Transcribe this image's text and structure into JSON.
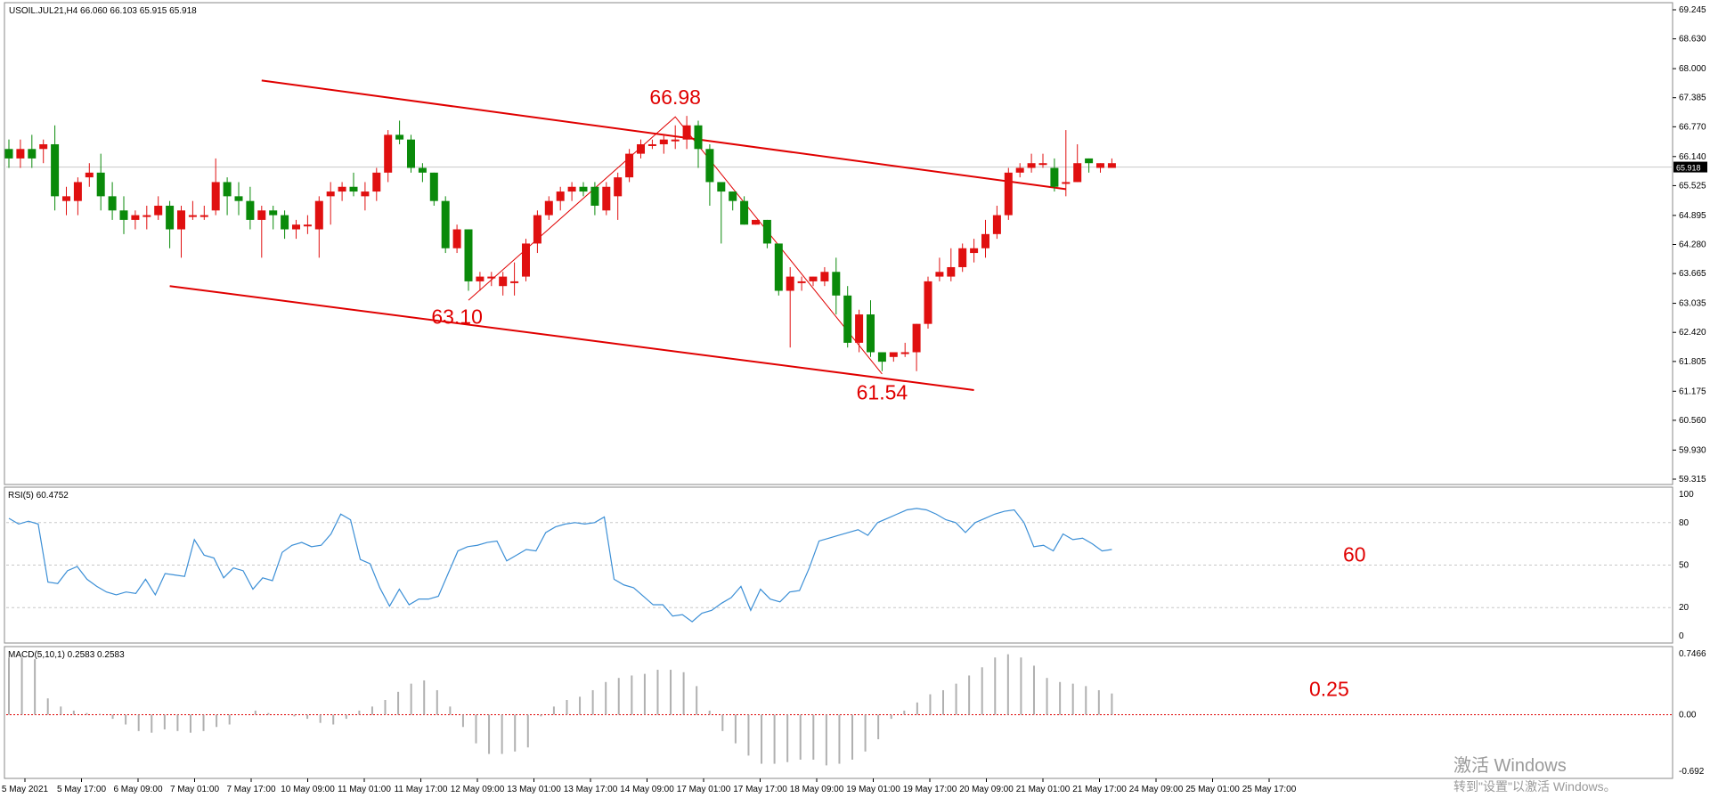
{
  "header": {
    "symbol_info": "USOIL.JUL21,H4  66.060 66.103 65.915 65.918",
    "rsi_label": "RSI(5) 60.4752",
    "macd_label": "MACD(5,10,1) 0.2583 0.2583"
  },
  "watermark": {
    "line1": "激活 Windows",
    "line2": "转到\"设置\"以激活 Windows。"
  },
  "colors": {
    "bull": "#e01010",
    "bear": "#0a8a0a",
    "channel": "#e00000",
    "rsi_line": "#3c8fd6",
    "grid": "#c8c8c8",
    "annotation": "#e00000"
  },
  "chart_data": [
    {
      "type": "candlestick",
      "title": "USOIL.JUL21,H4",
      "current_price": "65.918",
      "ylim": [
        59.315,
        69.245
      ],
      "y_ticks": [
        "69.245",
        "68.630",
        "68.000",
        "67.385",
        "66.770",
        "66.140",
        "65.525",
        "64.895",
        "64.280",
        "63.665",
        "63.035",
        "62.420",
        "61.805",
        "61.175",
        "60.560",
        "59.930",
        "59.315"
      ],
      "x_ticks": [
        "5 May 2021",
        "5 May 17:00",
        "6 May 09:00",
        "7 May 01:00",
        "7 May 17:00",
        "10 May 09:00",
        "11 May 01:00",
        "11 May 17:00",
        "12 May 09:00",
        "13 May 01:00",
        "13 May 17:00",
        "14 May 09:00",
        "17 May 01:00",
        "17 May 17:00",
        "18 May 09:00",
        "19 May 01:00",
        "19 May 17:00",
        "20 May 09:00",
        "21 May 01:00",
        "21 May 17:00",
        "24 May 09:00",
        "25 May 01:00",
        "25 May 17:00"
      ],
      "candles": [
        [
          66.3,
          66.1,
          66.5,
          65.9
        ],
        [
          66.1,
          66.3,
          66.5,
          65.9
        ],
        [
          66.3,
          66.1,
          66.6,
          65.9
        ],
        [
          66.3,
          66.4,
          66.5,
          66.0
        ],
        [
          66.4,
          65.3,
          66.8,
          65.0
        ],
        [
          65.2,
          65.3,
          65.5,
          64.9
        ],
        [
          65.2,
          65.6,
          65.7,
          64.9
        ],
        [
          65.7,
          65.8,
          66.0,
          65.5
        ],
        [
          65.8,
          65.3,
          66.2,
          65.0
        ],
        [
          65.3,
          65.0,
          65.6,
          64.8
        ],
        [
          65.0,
          64.8,
          65.3,
          64.5
        ],
        [
          64.8,
          64.9,
          65.0,
          64.6
        ],
        [
          64.9,
          64.9,
          65.1,
          64.6
        ],
        [
          64.9,
          65.1,
          65.3,
          64.8
        ],
        [
          65.1,
          64.6,
          65.2,
          64.2
        ],
        [
          64.6,
          65.0,
          65.1,
          64.0
        ],
        [
          64.9,
          64.9,
          65.2,
          64.8
        ],
        [
          64.9,
          64.9,
          65.1,
          64.8
        ],
        [
          65.0,
          65.6,
          66.1,
          64.9
        ],
        [
          65.6,
          65.3,
          65.7,
          64.9
        ],
        [
          65.3,
          65.2,
          65.6,
          64.9
        ],
        [
          65.2,
          64.8,
          65.5,
          64.6
        ],
        [
          64.8,
          65.0,
          65.1,
          64.0
        ],
        [
          65.0,
          64.9,
          65.1,
          64.6
        ],
        [
          64.9,
          64.6,
          65.0,
          64.4
        ],
        [
          64.6,
          64.7,
          64.8,
          64.4
        ],
        [
          64.7,
          64.7,
          64.9,
          64.5
        ],
        [
          64.6,
          65.2,
          65.3,
          64.0
        ],
        [
          65.3,
          65.4,
          65.6,
          64.7
        ],
        [
          65.4,
          65.5,
          65.6,
          65.2
        ],
        [
          65.5,
          65.4,
          65.8,
          65.3
        ],
        [
          65.3,
          65.4,
          65.6,
          65.0
        ],
        [
          65.4,
          65.8,
          65.9,
          65.2
        ],
        [
          65.8,
          66.6,
          66.7,
          65.6
        ],
        [
          66.6,
          66.5,
          66.9,
          66.4
        ],
        [
          66.5,
          65.9,
          66.6,
          65.8
        ],
        [
          65.9,
          65.8,
          66.0,
          65.6
        ],
        [
          65.8,
          65.2,
          65.8,
          65.1
        ],
        [
          65.2,
          64.2,
          65.3,
          64.1
        ],
        [
          64.2,
          64.6,
          64.7,
          64.1
        ],
        [
          64.6,
          63.5,
          64.6,
          63.3
        ],
        [
          63.5,
          63.6,
          63.7,
          63.3
        ],
        [
          63.6,
          63.6,
          63.7,
          63.4
        ],
        [
          63.4,
          63.6,
          63.7,
          63.2
        ],
        [
          63.5,
          63.5,
          63.9,
          63.2
        ],
        [
          63.6,
          64.3,
          64.4,
          63.5
        ],
        [
          64.3,
          64.9,
          65.0,
          64.1
        ],
        [
          64.9,
          65.2,
          65.3,
          64.8
        ],
        [
          65.2,
          65.4,
          65.5,
          65.0
        ],
        [
          65.4,
          65.5,
          65.6,
          65.2
        ],
        [
          65.5,
          65.4,
          65.6,
          65.3
        ],
        [
          65.5,
          65.1,
          65.6,
          64.9
        ],
        [
          65.0,
          65.5,
          65.6,
          64.9
        ],
        [
          65.3,
          65.7,
          65.8,
          64.8
        ],
        [
          65.7,
          66.2,
          66.3,
          65.6
        ],
        [
          66.2,
          66.4,
          66.5,
          66.1
        ],
        [
          66.4,
          66.4,
          66.5,
          66.3
        ],
        [
          66.4,
          66.5,
          66.6,
          66.2
        ],
        [
          66.5,
          66.5,
          66.8,
          66.3
        ],
        [
          66.5,
          66.8,
          67.0,
          66.3
        ],
        [
          66.8,
          66.3,
          66.9,
          65.9
        ],
        [
          66.3,
          65.6,
          66.4,
          65.1
        ],
        [
          65.6,
          65.4,
          65.5,
          64.3
        ],
        [
          65.4,
          65.2,
          65.4,
          65.0
        ],
        [
          65.2,
          64.7,
          65.3,
          64.7
        ],
        [
          64.7,
          64.8,
          64.8,
          64.7
        ],
        [
          64.8,
          64.3,
          64.8,
          64.2
        ],
        [
          64.3,
          63.3,
          64.3,
          63.2
        ],
        [
          63.3,
          63.6,
          63.8,
          62.1
        ],
        [
          63.5,
          63.5,
          63.6,
          63.3
        ],
        [
          63.5,
          63.6,
          63.6,
          63.4
        ],
        [
          63.5,
          63.7,
          63.8,
          63.4
        ],
        [
          63.7,
          63.2,
          64.0,
          62.8
        ],
        [
          63.2,
          62.2,
          63.4,
          62.1
        ],
        [
          62.2,
          62.8,
          62.9,
          62.0
        ],
        [
          62.8,
          62.0,
          63.1,
          61.9
        ],
        [
          62.0,
          61.8,
          62.0,
          61.6
        ],
        [
          61.9,
          62.0,
          62.0,
          61.8
        ],
        [
          62.0,
          62.0,
          62.2,
          61.9
        ],
        [
          62.0,
          62.6,
          62.6,
          61.6
        ],
        [
          62.6,
          63.5,
          63.6,
          62.5
        ],
        [
          63.6,
          63.7,
          64.0,
          63.5
        ],
        [
          63.6,
          63.8,
          64.2,
          63.5
        ],
        [
          63.8,
          64.2,
          64.3,
          63.7
        ],
        [
          64.1,
          64.2,
          64.4,
          63.9
        ],
        [
          64.2,
          64.5,
          64.8,
          64.0
        ],
        [
          64.5,
          64.9,
          65.1,
          64.4
        ],
        [
          64.9,
          65.8,
          65.9,
          64.8
        ],
        [
          65.8,
          65.9,
          66.0,
          65.7
        ],
        [
          65.9,
          66.0,
          66.2,
          65.8
        ],
        [
          66.0,
          66.0,
          66.2,
          65.9
        ],
        [
          65.9,
          65.5,
          66.1,
          65.4
        ],
        [
          65.6,
          65.6,
          66.7,
          65.3
        ],
        [
          65.6,
          66.0,
          66.4,
          65.6
        ],
        [
          66.1,
          66.0,
          66.1,
          65.8
        ],
        [
          65.9,
          66.0,
          66.0,
          65.8
        ],
        [
          65.9,
          66.0,
          66.1,
          65.9
        ]
      ],
      "channel_lines": [
        {
          "from": [
            11,
            67.75
          ],
          "to": [
            46,
            65.45
          ]
        },
        {
          "from": [
            7,
            63.4
          ],
          "to": [
            42,
            61.2
          ]
        }
      ],
      "zigzag_points": [
        [
          20,
          63.1
        ],
        [
          29,
          66.98
        ],
        [
          38,
          61.54
        ]
      ],
      "annotations": [
        {
          "text": "66.98",
          "x": 29,
          "y": 67.25
        },
        {
          "text": "63.10",
          "x": 19.5,
          "y": 62.6
        },
        {
          "text": "61.54",
          "x": 38,
          "y": 61.0
        }
      ]
    },
    {
      "type": "line",
      "title": "RSI(5) 60.4752",
      "ylim": [
        0,
        100
      ],
      "levels": [
        20,
        50,
        80
      ],
      "y_ticks": [
        "100",
        "80",
        "50",
        "20",
        "0"
      ],
      "values": [
        83,
        79,
        81,
        79,
        38,
        37,
        46,
        49,
        40,
        35,
        31,
        29,
        31,
        30,
        40,
        29,
        44,
        43,
        42,
        68,
        57,
        55,
        41,
        48,
        46,
        33,
        41,
        39,
        59,
        64,
        66,
        63,
        64,
        72,
        86,
        82,
        54,
        51,
        34,
        21,
        33,
        22,
        26,
        26,
        28,
        44,
        60,
        63,
        64,
        66,
        67,
        53,
        57,
        61,
        60,
        73,
        77,
        79,
        80,
        79,
        80,
        84,
        40,
        36,
        34,
        28,
        22,
        22,
        14,
        15,
        10,
        16,
        18,
        23,
        27,
        35,
        18,
        33,
        26,
        24,
        31,
        32,
        48,
        67,
        69,
        71,
        73,
        75,
        71,
        80,
        83,
        86,
        89,
        90,
        89,
        86,
        82,
        80,
        73,
        80,
        83,
        86,
        88,
        89,
        80,
        63,
        64,
        60,
        72,
        68,
        69,
        65,
        60,
        61
      ],
      "annotation": "60"
    },
    {
      "type": "bar",
      "title": "MACD(5,10,1) 0.2583 0.2583",
      "ylim": [
        -0.692,
        0.7466
      ],
      "y_ticks": [
        "0.7466",
        "0.00",
        "-0.692"
      ],
      "values": [
        0.7,
        0.7,
        0.68,
        0.2,
        0.1,
        0.05,
        0.02,
        0.01,
        -0.05,
        -0.12,
        -0.2,
        -0.22,
        -0.18,
        -0.2,
        -0.22,
        -0.2,
        -0.15,
        -0.12,
        0.0,
        0.05,
        0.02,
        0.0,
        -0.02,
        -0.05,
        -0.1,
        -0.12,
        -0.05,
        0.05,
        0.1,
        0.18,
        0.28,
        0.38,
        0.42,
        0.3,
        0.1,
        -0.15,
        -0.35,
        -0.48,
        -0.48,
        -0.45,
        -0.4,
        -0.02,
        0.1,
        0.18,
        0.22,
        0.3,
        0.4,
        0.45,
        0.48,
        0.5,
        0.55,
        0.55,
        0.52,
        0.35,
        0.05,
        -0.2,
        -0.35,
        -0.5,
        -0.6,
        -0.6,
        -0.58,
        -0.55,
        -0.55,
        -0.62,
        -0.6,
        -0.55,
        -0.45,
        -0.3,
        -0.05,
        0.05,
        0.15,
        0.25,
        0.3,
        0.38,
        0.48,
        0.58,
        0.7,
        0.74,
        0.7,
        0.6,
        0.45,
        0.4,
        0.38,
        0.35,
        0.3,
        0.26
      ],
      "annotation": "0.25"
    }
  ]
}
